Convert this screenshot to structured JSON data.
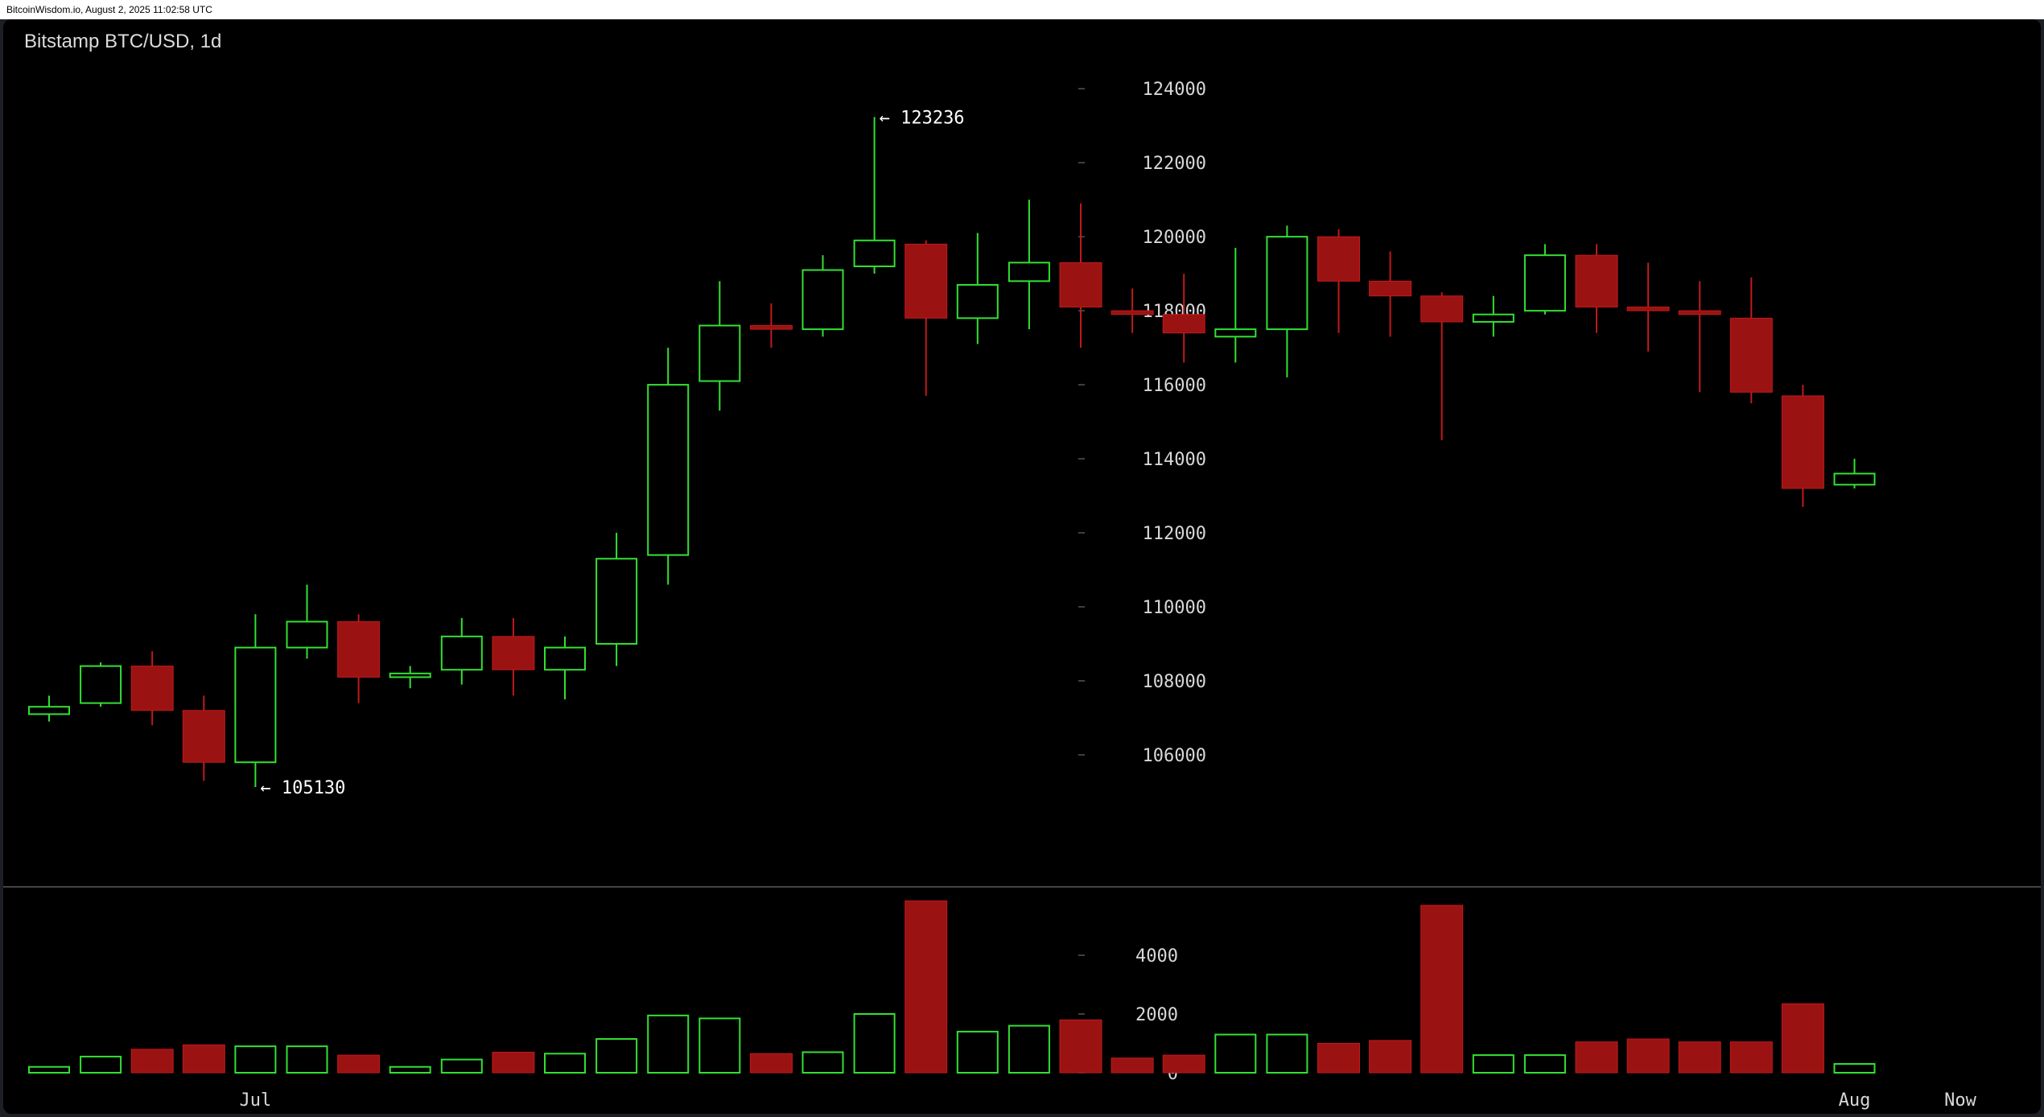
{
  "header": {
    "source_line": "BitcoinWisdom.io, August 2, 2025 11:02:58 UTC"
  },
  "colors": {
    "background": "#000000",
    "up": "#33e033",
    "down": "#9b1212",
    "axis_text": "#d8d8d8",
    "divider": "#444444"
  },
  "chart_data": {
    "type": "candlestick",
    "title": "Bitstamp BTC/USD, 1d",
    "interval": "1d",
    "price_axis": {
      "ylim": [
        104000,
        124700
      ],
      "ticks": [
        106000,
        108000,
        110000,
        112000,
        114000,
        116000,
        118000,
        120000,
        122000,
        124000
      ],
      "tick_labels": [
        "106000",
        "108000",
        "110000",
        "112000",
        "114000",
        "116000",
        "118000",
        "120000",
        "122000",
        "124000"
      ]
    },
    "volume_axis": {
      "ylim": [
        0,
        6000
      ],
      "ticks": [
        0,
        2000,
        4000
      ],
      "tick_labels": [
        "0",
        "2000",
        "4000"
      ]
    },
    "x_axis": {
      "labels": [
        {
          "text": "Jul",
          "candle_index": 4
        },
        {
          "text": "Aug",
          "candle_index": 35
        }
      ],
      "extra_label": "Now"
    },
    "annotations": [
      {
        "text": "← 123236",
        "candle_index": 16,
        "price": 123236
      },
      {
        "text": "← 105130",
        "candle_index": 4,
        "price": 105130
      }
    ],
    "candles": [
      {
        "open": 107100,
        "high": 107600,
        "low": 106900,
        "close": 107300,
        "volume": 200
      },
      {
        "open": 107400,
        "high": 108500,
        "low": 107300,
        "close": 108400,
        "volume": 550
      },
      {
        "open": 108400,
        "high": 108800,
        "low": 106800,
        "close": 107200,
        "volume": 800
      },
      {
        "open": 107200,
        "high": 107600,
        "low": 105300,
        "close": 105800,
        "volume": 950
      },
      {
        "open": 105800,
        "high": 109800,
        "low": 105130,
        "close": 108900,
        "volume": 900
      },
      {
        "open": 108900,
        "high": 110600,
        "low": 108600,
        "close": 109600,
        "volume": 900
      },
      {
        "open": 109600,
        "high": 109800,
        "low": 107400,
        "close": 108100,
        "volume": 600
      },
      {
        "open": 108100,
        "high": 108400,
        "low": 107800,
        "close": 108200,
        "volume": 200
      },
      {
        "open": 108300,
        "high": 109700,
        "low": 107900,
        "close": 109200,
        "volume": 450
      },
      {
        "open": 109200,
        "high": 109700,
        "low": 107600,
        "close": 108300,
        "volume": 700
      },
      {
        "open": 108300,
        "high": 109200,
        "low": 107500,
        "close": 108900,
        "volume": 650
      },
      {
        "open": 109000,
        "high": 112000,
        "low": 108400,
        "close": 111300,
        "volume": 1150
      },
      {
        "open": 111400,
        "high": 117000,
        "low": 110600,
        "close": 116000,
        "volume": 1950
      },
      {
        "open": 116100,
        "high": 118800,
        "low": 115300,
        "close": 117600,
        "volume": 1850
      },
      {
        "open": 117600,
        "high": 118200,
        "low": 117000,
        "close": 117500,
        "volume": 650
      },
      {
        "open": 117500,
        "high": 119500,
        "low": 117300,
        "close": 119100,
        "volume": 700
      },
      {
        "open": 119200,
        "high": 123236,
        "low": 119000,
        "close": 119900,
        "volume": 2000
      },
      {
        "open": 119800,
        "high": 119900,
        "low": 115700,
        "close": 117800,
        "volume": 5850
      },
      {
        "open": 117800,
        "high": 120100,
        "low": 117100,
        "close": 118700,
        "volume": 1400
      },
      {
        "open": 118800,
        "high": 121000,
        "low": 117500,
        "close": 119300,
        "volume": 1600
      },
      {
        "open": 119300,
        "high": 120900,
        "low": 117000,
        "close": 118100,
        "volume": 1800
      },
      {
        "open": 118000,
        "high": 118600,
        "low": 117400,
        "close": 117900,
        "volume": 500
      },
      {
        "open": 117900,
        "high": 119000,
        "low": 116600,
        "close": 117400,
        "volume": 600
      },
      {
        "open": 117300,
        "high": 119700,
        "low": 116600,
        "close": 117500,
        "volume": 1300
      },
      {
        "open": 117500,
        "high": 120300,
        "low": 116200,
        "close": 120000,
        "volume": 1300
      },
      {
        "open": 120000,
        "high": 120200,
        "low": 117400,
        "close": 118800,
        "volume": 1000
      },
      {
        "open": 118800,
        "high": 119600,
        "low": 117300,
        "close": 118400,
        "volume": 1100
      },
      {
        "open": 118400,
        "high": 118500,
        "low": 114500,
        "close": 117700,
        "volume": 5700
      },
      {
        "open": 117700,
        "high": 118400,
        "low": 117300,
        "close": 117900,
        "volume": 600
      },
      {
        "open": 118000,
        "high": 119800,
        "low": 117900,
        "close": 119500,
        "volume": 600
      },
      {
        "open": 119500,
        "high": 119800,
        "low": 117400,
        "close": 118100,
        "volume": 1050
      },
      {
        "open": 118100,
        "high": 119300,
        "low": 116900,
        "close": 118000,
        "volume": 1150
      },
      {
        "open": 118000,
        "high": 118800,
        "low": 115800,
        "close": 117900,
        "volume": 1050
      },
      {
        "open": 117800,
        "high": 118900,
        "low": 115500,
        "close": 115800,
        "volume": 1050
      },
      {
        "open": 115700,
        "high": 116000,
        "low": 112700,
        "close": 113200,
        "volume": 2350
      },
      {
        "open": 113300,
        "high": 114000,
        "low": 113200,
        "close": 113600,
        "volume": 300
      }
    ]
  }
}
